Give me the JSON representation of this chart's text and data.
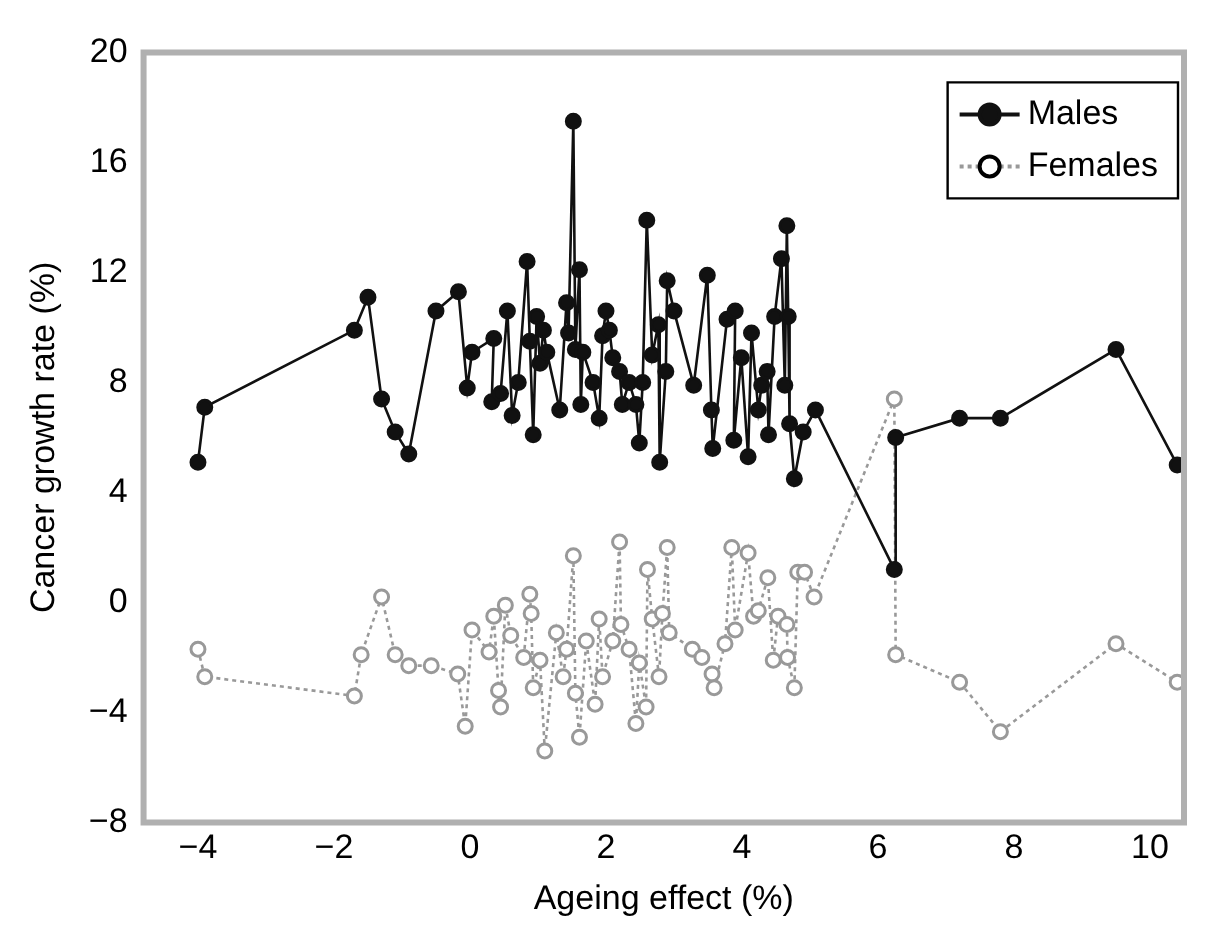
{
  "chart_data": {
    "type": "line",
    "xlabel": "Ageing effect (%)",
    "ylabel": "Cancer growth rate (%)",
    "xlim": [
      -4.8,
      10.5
    ],
    "ylim": [
      -8,
      20
    ],
    "xticks": [
      {
        "value": -4,
        "label": "−4"
      },
      {
        "value": -2,
        "label": "−2"
      },
      0,
      2,
      4,
      6,
      8,
      10
    ],
    "yticks": [
      {
        "value": -8,
        "label": "−8"
      },
      {
        "value": -4,
        "label": "−4"
      },
      0,
      4,
      8,
      12,
      16,
      20
    ],
    "grid": false,
    "legend": "top right",
    "series": [
      {
        "name": "Males",
        "color": "#111111",
        "marker": "circle",
        "line_style": "solid",
        "x": [
          -4,
          -3.9,
          -1.7,
          -1.5,
          -1.3,
          -1.1,
          -0.9,
          -0.5,
          -0.17,
          -0.04,
          0.03,
          0.35,
          0.32,
          0.45,
          0.55,
          0.62,
          0.71,
          0.84,
          0.88,
          0.93,
          0.98,
          1.03,
          1.08,
          1.13,
          1.32,
          1.42,
          1.45,
          1.52,
          1.55,
          1.61,
          1.63,
          1.66,
          1.81,
          1.9,
          1.95,
          2.0,
          2.05,
          2.1,
          2.2,
          2.24,
          2.34,
          2.44,
          2.49,
          2.54,
          2.6,
          2.68,
          2.77,
          2.79,
          2.88,
          2.9,
          3.0,
          3.29,
          3.49,
          3.55,
          3.57,
          3.78,
          3.9,
          3.88,
          3.99,
          4.09,
          4.14,
          4.24,
          4.29,
          4.37,
          4.39,
          4.48,
          4.58,
          4.63,
          4.66,
          4.68,
          4.7,
          4.77,
          4.9,
          5.08,
          6.24,
          6.26,
          7.2,
          7.8,
          9.5,
          10.4
        ],
        "values": [
          5.1,
          7.1,
          9.9,
          11.1,
          7.4,
          6.2,
          5.4,
          10.6,
          11.3,
          7.8,
          9.1,
          9.6,
          7.3,
          7.6,
          10.6,
          6.8,
          8.0,
          12.4,
          9.5,
          6.1,
          10.4,
          8.7,
          9.9,
          9.1,
          7.0,
          10.9,
          9.8,
          17.5,
          9.2,
          12.1,
          7.2,
          9.1,
          8.0,
          6.7,
          9.7,
          10.6,
          9.9,
          8.9,
          8.4,
          7.2,
          8.0,
          7.2,
          5.8,
          8.0,
          13.9,
          9.0,
          10.1,
          5.1,
          8.4,
          11.7,
          10.6,
          7.9,
          11.9,
          7.0,
          5.6,
          10.3,
          10.6,
          5.9,
          8.9,
          5.3,
          9.8,
          7.0,
          7.9,
          8.4,
          6.1,
          10.4,
          12.5,
          7.9,
          13.7,
          10.4,
          6.5,
          4.5,
          6.2,
          7.0,
          1.2,
          6.0,
          6.7,
          6.7,
          9.2,
          5.0
        ]
      },
      {
        "name": "Females",
        "color": "#999999",
        "marker": "circle",
        "line_style": "dotted",
        "x": [
          -4,
          -3.9,
          -1.7,
          -1.6,
          -1.3,
          -1.1,
          -0.9,
          -0.57,
          -0.18,
          -0.07,
          0.03,
          0.28,
          0.35,
          0.42,
          0.45,
          0.52,
          0.6,
          0.79,
          0.88,
          0.9,
          0.93,
          1.03,
          1.1,
          1.27,
          1.37,
          1.42,
          1.52,
          1.55,
          1.61,
          1.71,
          1.84,
          1.9,
          1.95,
          2.1,
          2.2,
          2.22,
          2.34,
          2.44,
          2.49,
          2.59,
          2.61,
          2.68,
          2.78,
          2.83,
          2.9,
          2.93,
          3.27,
          3.41,
          3.56,
          3.59,
          3.75,
          3.85,
          3.9,
          4.09,
          4.17,
          4.24,
          4.38,
          4.46,
          4.53,
          4.66,
          4.67,
          4.77,
          4.82,
          4.92,
          5.06,
          6.24,
          6.26,
          7.2,
          7.8,
          9.5,
          10.4
        ],
        "values": [
          -1.7,
          -2.7,
          -3.4,
          -1.9,
          0.2,
          -1.9,
          -2.3,
          -2.3,
          -2.6,
          -4.5,
          -1.0,
          -1.8,
          -0.5,
          -3.2,
          -3.8,
          -0.1,
          -1.2,
          -2.0,
          0.3,
          -0.4,
          -3.1,
          -2.1,
          -5.4,
          -1.1,
          -2.7,
          -1.7,
          1.7,
          -3.3,
          -4.9,
          -1.4,
          -3.7,
          -0.6,
          -2.7,
          -1.4,
          2.2,
          -0.8,
          -1.7,
          -4.4,
          -2.2,
          -3.8,
          1.2,
          -0.6,
          -2.7,
          -0.4,
          2.0,
          -1.1,
          -1.7,
          -2.0,
          -2.6,
          -3.1,
          -1.5,
          2.0,
          -1.0,
          1.8,
          -0.5,
          -0.3,
          0.9,
          -2.1,
          -0.5,
          -0.8,
          -2.0,
          -3.1,
          1.1,
          1.1,
          0.2,
          7.4,
          -1.9,
          -2.9,
          -4.7,
          -1.5,
          -2.9
        ]
      }
    ]
  }
}
